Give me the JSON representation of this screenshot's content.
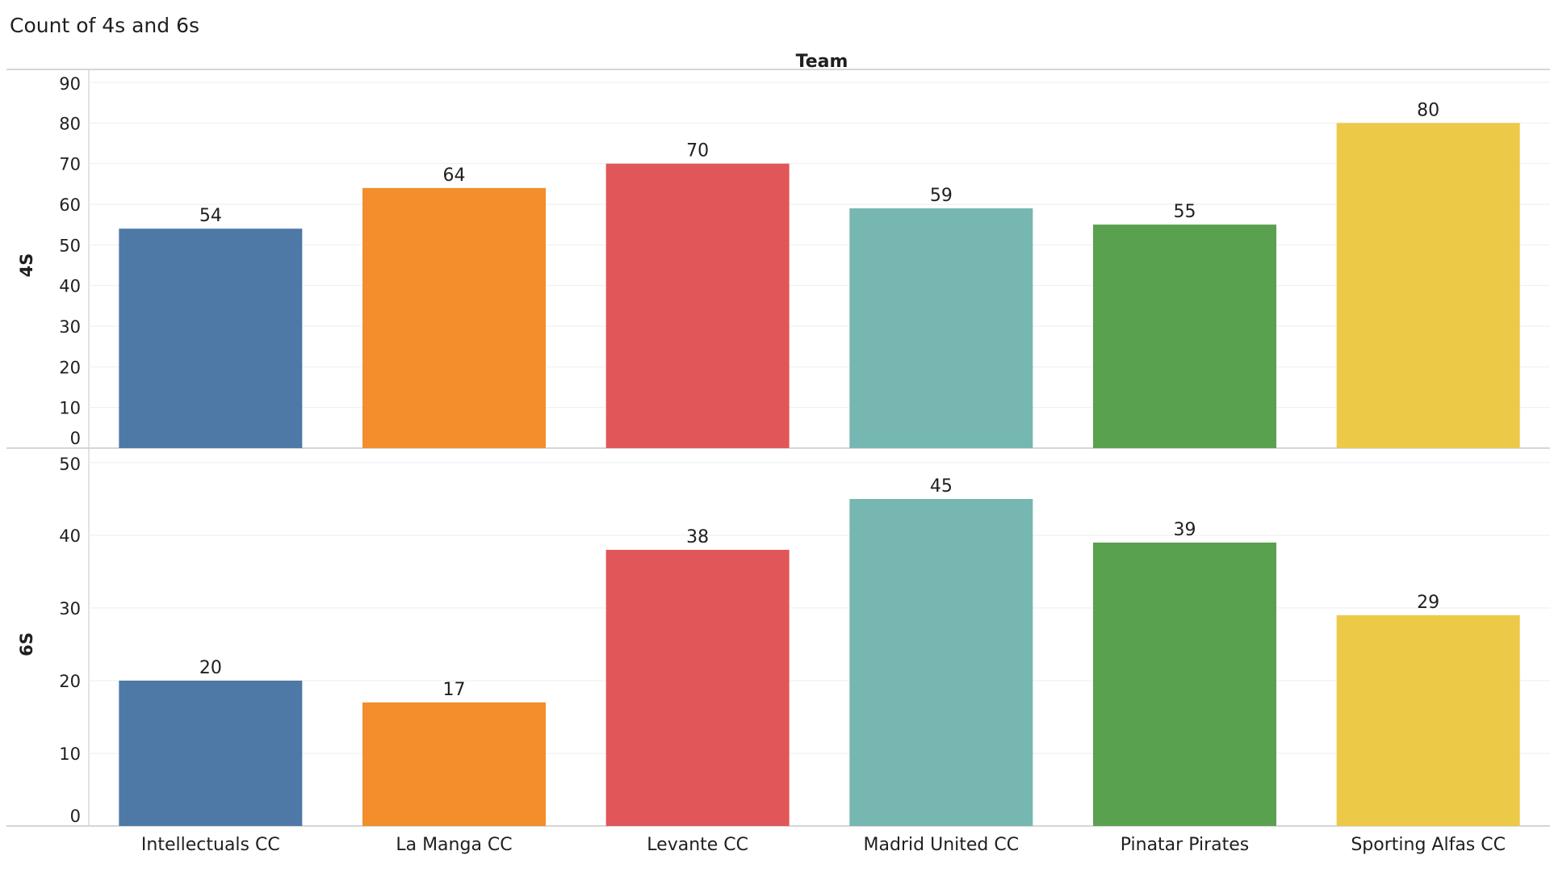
{
  "chart_data": {
    "type": "bar",
    "title": "Count of 4s and 6s",
    "column_header": "Team",
    "categories": [
      "Intellectuals CC",
      "La Manga CC",
      "Levante CC",
      "Madrid United CC",
      "Pinatar Pirates",
      "Sporting Alfas CC"
    ],
    "colors": [
      "#4e79a7",
      "#f28e2b",
      "#e15759",
      "#76b7b2",
      "#59a14f",
      "#edc948"
    ],
    "grid": true,
    "legend": "none",
    "panels": [
      {
        "ylabel": "4S",
        "ylim": [
          0,
          90
        ],
        "yticks": [
          0,
          10,
          20,
          30,
          40,
          50,
          60,
          70,
          80,
          90
        ],
        "values": [
          54,
          64,
          70,
          59,
          55,
          80
        ]
      },
      {
        "ylabel": "6S",
        "ylim": [
          0,
          50
        ],
        "yticks": [
          0,
          10,
          20,
          30,
          40,
          50
        ],
        "values": [
          20,
          17,
          38,
          45,
          39,
          29
        ]
      }
    ]
  }
}
